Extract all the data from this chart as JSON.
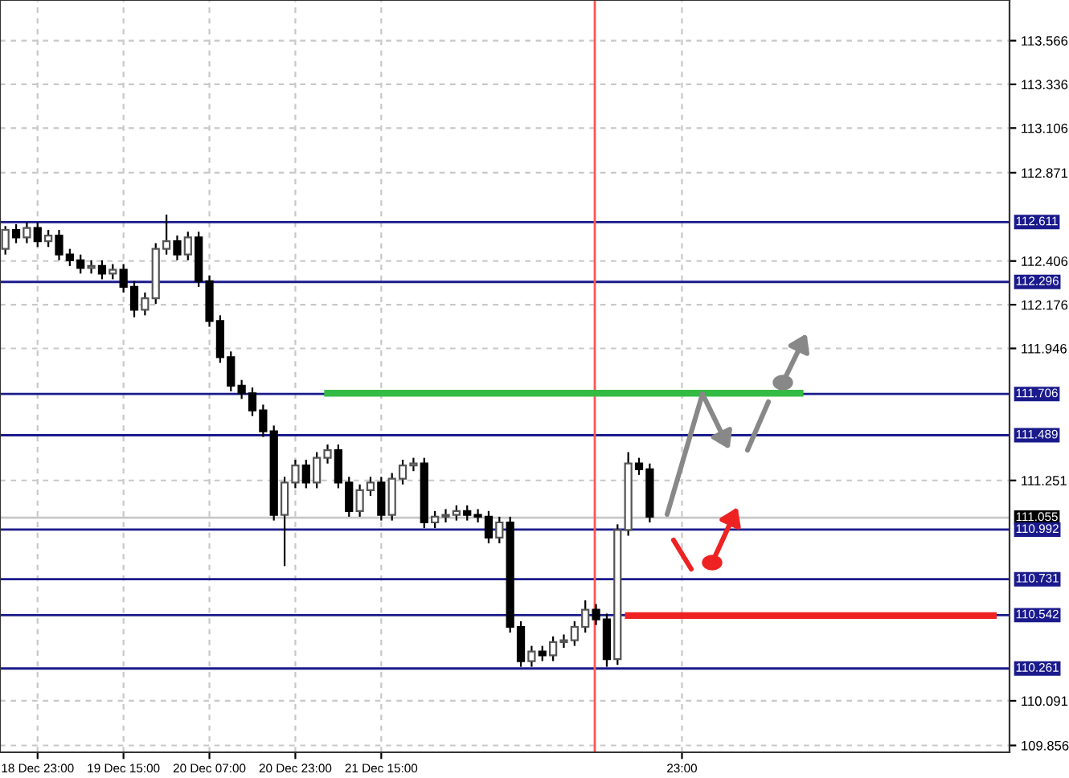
{
  "chart_data": {
    "type": "candlestick",
    "categories": [
      null,
      null,
      null,
      "18 Dec 23:00",
      null,
      null,
      null,
      null,
      null,
      null,
      null,
      "19 Dec 15:00",
      null,
      null,
      null,
      null,
      null,
      null,
      null,
      "20 Dec 07:00",
      null,
      null,
      null,
      null,
      null,
      null,
      null,
      "20 Dec 23:00",
      null,
      null,
      null,
      null,
      null,
      null,
      null,
      "21 Dec 15:00",
      null,
      null,
      null,
      null,
      null,
      null,
      null,
      null,
      null,
      null,
      null,
      null,
      null,
      null,
      null,
      null,
      null,
      null,
      null,
      null,
      null,
      null,
      null,
      null,
      null,
      null,
      null,
      "23:00",
      null,
      null,
      null,
      null,
      null,
      null,
      null,
      null,
      null,
      null,
      null,
      null,
      null,
      null,
      null,
      null,
      null,
      null,
      null,
      null,
      null,
      null,
      null,
      null,
      null,
      null,
      null,
      null,
      null,
      null
    ],
    "ohlc": [
      [
        112.47,
        112.59,
        112.44,
        112.57
      ],
      [
        112.57,
        112.6,
        112.5,
        112.53
      ],
      [
        112.53,
        112.61,
        112.5,
        112.58
      ],
      [
        112.58,
        112.61,
        112.48,
        112.51
      ],
      [
        112.51,
        112.57,
        112.48,
        112.54
      ],
      [
        112.54,
        112.57,
        112.41,
        112.44
      ],
      [
        112.44,
        112.47,
        112.38,
        112.41
      ],
      [
        112.41,
        112.44,
        112.34,
        112.37
      ],
      [
        112.37,
        112.41,
        112.34,
        112.38
      ],
      [
        112.38,
        112.41,
        112.31,
        112.34
      ],
      [
        112.34,
        112.39,
        112.31,
        112.36
      ],
      [
        112.36,
        112.39,
        112.24,
        112.27
      ],
      [
        112.27,
        112.3,
        112.11,
        112.15
      ],
      [
        112.15,
        112.24,
        112.12,
        112.21
      ],
      [
        112.21,
        112.5,
        112.18,
        112.47
      ],
      [
        112.47,
        112.65,
        112.44,
        112.51
      ],
      [
        112.51,
        112.54,
        112.41,
        112.44
      ],
      [
        112.44,
        112.56,
        112.41,
        112.53
      ],
      [
        112.53,
        112.56,
        112.27,
        112.3
      ],
      [
        112.3,
        112.33,
        112.06,
        112.09
      ],
      [
        112.09,
        112.12,
        111.87,
        111.9
      ],
      [
        111.9,
        111.93,
        111.72,
        111.75
      ],
      [
        111.75,
        111.78,
        111.68,
        111.71
      ],
      [
        111.71,
        111.74,
        111.59,
        111.62
      ],
      [
        111.62,
        111.65,
        111.48,
        111.51
      ],
      [
        111.51,
        111.54,
        111.04,
        111.07
      ],
      [
        111.07,
        111.27,
        110.8,
        111.24
      ],
      [
        111.24,
        111.36,
        111.21,
        111.33
      ],
      [
        111.33,
        111.36,
        111.21,
        111.24
      ],
      [
        111.24,
        111.4,
        111.21,
        111.37
      ],
      [
        111.37,
        111.44,
        111.34,
        111.41
      ],
      [
        111.41,
        111.44,
        111.21,
        111.24
      ],
      [
        111.24,
        111.27,
        111.06,
        111.09
      ],
      [
        111.09,
        111.23,
        111.06,
        111.2
      ],
      [
        111.2,
        111.27,
        111.17,
        111.24
      ],
      [
        111.24,
        111.27,
        111.04,
        111.07
      ],
      [
        111.07,
        111.29,
        111.04,
        111.26
      ],
      [
        111.26,
        111.36,
        111.23,
        111.33
      ],
      [
        111.33,
        111.37,
        111.3,
        111.34
      ],
      [
        111.34,
        111.37,
        111.0,
        111.03
      ],
      [
        111.03,
        111.09,
        111.0,
        111.06
      ],
      [
        111.06,
        111.1,
        111.03,
        111.07
      ],
      [
        111.07,
        111.12,
        111.04,
        111.09
      ],
      [
        111.09,
        111.12,
        111.04,
        111.07
      ],
      [
        111.07,
        111.1,
        111.03,
        111.06
      ],
      [
        111.06,
        111.09,
        110.92,
        110.95
      ],
      [
        110.95,
        111.06,
        110.92,
        111.03
      ],
      [
        111.03,
        111.06,
        110.45,
        110.48
      ],
      [
        110.48,
        110.51,
        110.27,
        110.3
      ],
      [
        110.3,
        110.38,
        110.27,
        110.35
      ],
      [
        110.35,
        110.38,
        110.3,
        110.33
      ],
      [
        110.33,
        110.43,
        110.3,
        110.4
      ],
      [
        110.4,
        110.44,
        110.37,
        110.41
      ],
      [
        110.41,
        110.51,
        110.38,
        110.48
      ],
      [
        110.48,
        110.62,
        110.45,
        110.57
      ],
      [
        110.57,
        110.6,
        110.49,
        110.52
      ],
      [
        110.52,
        110.55,
        110.27,
        110.31
      ],
      [
        110.31,
        111.02,
        110.28,
        110.99
      ],
      [
        110.99,
        111.4,
        110.96,
        111.34
      ],
      [
        111.34,
        111.37,
        111.28,
        111.31
      ],
      [
        111.31,
        111.34,
        111.03,
        111.06
      ],
      null,
      null,
      null,
      null,
      null,
      null,
      null,
      null,
      null,
      null,
      null,
      null,
      null,
      null,
      null,
      null,
      null,
      null,
      null,
      null,
      null,
      null,
      null,
      null,
      null,
      null,
      null,
      null,
      null,
      null,
      null,
      null,
      null
    ],
    "series": [
      {
        "type": "line",
        "color": "#33bb44",
        "values": [
          null,
          null,
          null,
          null,
          null,
          null,
          null,
          null,
          null,
          null,
          null,
          null,
          null,
          null,
          null,
          null,
          null,
          null,
          null,
          null,
          null,
          null,
          null,
          null,
          null,
          null,
          null,
          null,
          null,
          null,
          111.71,
          111.71,
          111.71,
          111.71,
          111.71,
          111.71,
          111.71,
          111.71,
          111.71,
          111.71,
          111.71,
          111.71,
          111.71,
          111.71,
          111.71,
          111.71,
          111.71,
          111.71,
          111.71,
          111.71,
          111.71,
          111.71,
          111.71,
          111.71,
          111.71,
          111.71,
          111.71,
          111.71,
          111.71,
          111.71,
          111.71,
          111.71,
          111.71,
          111.71,
          111.71,
          111.71,
          111.71,
          111.71,
          111.71,
          111.71,
          111.71,
          111.71,
          111.71,
          111.71,
          111.71,
          null,
          null,
          null,
          null,
          null,
          null,
          null,
          null,
          null,
          null,
          null,
          null,
          null,
          null,
          null,
          null,
          null,
          null,
          null
        ]
      },
      {
        "type": "line",
        "color": "#ee2222",
        "values": [
          null,
          null,
          null,
          null,
          null,
          null,
          null,
          null,
          null,
          null,
          null,
          null,
          null,
          null,
          null,
          null,
          null,
          null,
          null,
          null,
          null,
          null,
          null,
          null,
          null,
          null,
          null,
          null,
          null,
          null,
          null,
          null,
          null,
          null,
          null,
          null,
          null,
          null,
          null,
          null,
          null,
          null,
          null,
          null,
          null,
          null,
          null,
          null,
          null,
          null,
          null,
          null,
          null,
          null,
          null,
          null,
          null,
          null,
          110.54,
          110.54,
          110.54,
          110.54,
          110.54,
          110.54,
          110.54,
          110.54,
          110.54,
          110.54,
          110.54,
          110.54,
          110.54,
          110.54,
          110.54,
          110.54,
          110.54,
          110.54,
          110.54,
          110.54,
          110.54,
          110.54,
          110.54,
          110.54,
          110.54,
          110.54,
          110.54,
          110.54,
          110.54,
          110.54,
          110.54,
          110.54,
          110.54,
          110.54,
          110.54,
          null
        ]
      }
    ],
    "ylim": [
      109.82,
      113.78
    ],
    "yticks": [
      113.566,
      113.336,
      113.106,
      112.871,
      112.406,
      112.176,
      111.946,
      111.251,
      110.091,
      109.856
    ],
    "grid": true,
    "ref_lines": [
      {
        "axis": "y",
        "value": 112.611,
        "label": "112.611",
        "color": "#1a1a8c"
      },
      {
        "axis": "y",
        "value": 112.296,
        "label": "112.296",
        "color": "#1a1a8c"
      },
      {
        "axis": "y",
        "value": 111.706,
        "label": "111.706",
        "color": "#1a1a8c"
      },
      {
        "axis": "y",
        "value": 111.489,
        "label": "111.489",
        "color": "#1a1a8c"
      },
      {
        "axis": "y",
        "value": 111.055,
        "label": "111.055",
        "color": "#c8c8c8"
      },
      {
        "axis": "y",
        "value": 110.992,
        "label": "110.992",
        "color": "#1a1a8c"
      },
      {
        "axis": "y",
        "value": 110.731,
        "label": "110.731",
        "color": "#1a1a8c"
      },
      {
        "axis": "y",
        "value": 110.542,
        "label": "110.542",
        "color": "#1a1a8c"
      },
      {
        "axis": "y",
        "value": 110.261,
        "label": "110.261",
        "color": "#1a1a8c"
      }
    ]
  }
}
